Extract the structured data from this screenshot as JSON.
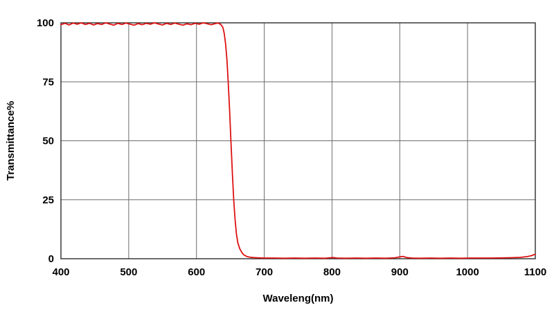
{
  "chart_data": {
    "type": "line",
    "title": "",
    "xlabel": "Waveleng(nm)",
    "ylabel": "Transmittance%",
    "xlim": [
      400,
      1100
    ],
    "ylim": [
      0,
      100
    ],
    "x_ticks": [
      400,
      500,
      600,
      700,
      800,
      900,
      1000,
      1100
    ],
    "y_ticks": [
      0,
      25,
      50,
      75,
      100
    ],
    "grid": true,
    "legend": false,
    "series": [
      {
        "name": "Transmittance",
        "color": "#dd1111",
        "points": [
          [
            400,
            99.2
          ],
          [
            406,
            99.8
          ],
          [
            412,
            99.1
          ],
          [
            418,
            99.9
          ],
          [
            424,
            99.4
          ],
          [
            430,
            100.0
          ],
          [
            436,
            99.3
          ],
          [
            442,
            99.8
          ],
          [
            448,
            99.1
          ],
          [
            454,
            99.7
          ],
          [
            460,
            99.3
          ],
          [
            466,
            100.0
          ],
          [
            472,
            99.5
          ],
          [
            478,
            99.0
          ],
          [
            484,
            99.8
          ],
          [
            490,
            99.3
          ],
          [
            496,
            99.9
          ],
          [
            502,
            99.4
          ],
          [
            508,
            99.0
          ],
          [
            514,
            99.7
          ],
          [
            520,
            99.2
          ],
          [
            526,
            99.8
          ],
          [
            532,
            99.4
          ],
          [
            538,
            100.0
          ],
          [
            544,
            99.5
          ],
          [
            550,
            99.1
          ],
          [
            556,
            99.8
          ],
          [
            562,
            99.3
          ],
          [
            568,
            99.9
          ],
          [
            574,
            99.4
          ],
          [
            580,
            99.0
          ],
          [
            586,
            99.6
          ],
          [
            592,
            99.2
          ],
          [
            598,
            99.8
          ],
          [
            604,
            99.4
          ],
          [
            610,
            100.0
          ],
          [
            616,
            99.6
          ],
          [
            622,
            99.2
          ],
          [
            628,
            99.7
          ],
          [
            632,
            99.9
          ],
          [
            636,
            99.3
          ],
          [
            639,
            98.0
          ],
          [
            641,
            95.5
          ],
          [
            643,
            91.0
          ],
          [
            645,
            84.0
          ],
          [
            647,
            74.0
          ],
          [
            649,
            62.0
          ],
          [
            651,
            49.0
          ],
          [
            653,
            36.0
          ],
          [
            655,
            25.0
          ],
          [
            657,
            16.5
          ],
          [
            659,
            10.5
          ],
          [
            661,
            6.8
          ],
          [
            664,
            4.2
          ],
          [
            667,
            2.6
          ],
          [
            670,
            1.6
          ],
          [
            674,
            1.0
          ],
          [
            678,
            0.7
          ],
          [
            684,
            0.5
          ],
          [
            690,
            0.4
          ],
          [
            700,
            0.3
          ],
          [
            715,
            0.3
          ],
          [
            730,
            0.2
          ],
          [
            745,
            0.3
          ],
          [
            760,
            0.2
          ],
          [
            775,
            0.3
          ],
          [
            790,
            0.2
          ],
          [
            797,
            0.4
          ],
          [
            802,
            0.5
          ],
          [
            807,
            0.3
          ],
          [
            820,
            0.2
          ],
          [
            835,
            0.3
          ],
          [
            850,
            0.2
          ],
          [
            865,
            0.3
          ],
          [
            880,
            0.2
          ],
          [
            893,
            0.4
          ],
          [
            900,
            0.8
          ],
          [
            905,
            1.0
          ],
          [
            910,
            0.5
          ],
          [
            918,
            0.3
          ],
          [
            930,
            0.2
          ],
          [
            945,
            0.3
          ],
          [
            960,
            0.2
          ],
          [
            975,
            0.3
          ],
          [
            990,
            0.2
          ],
          [
            1005,
            0.3
          ],
          [
            1020,
            0.3
          ],
          [
            1035,
            0.3
          ],
          [
            1050,
            0.35
          ],
          [
            1065,
            0.45
          ],
          [
            1078,
            0.6
          ],
          [
            1088,
            0.9
          ],
          [
            1094,
            1.3
          ],
          [
            1100,
            1.9
          ]
        ]
      }
    ]
  },
  "colors": {
    "line": "#dd1111",
    "grid": "#6b6b6b",
    "border": "#2b2b2b",
    "background": "#ffffff",
    "text": "#000000"
  }
}
